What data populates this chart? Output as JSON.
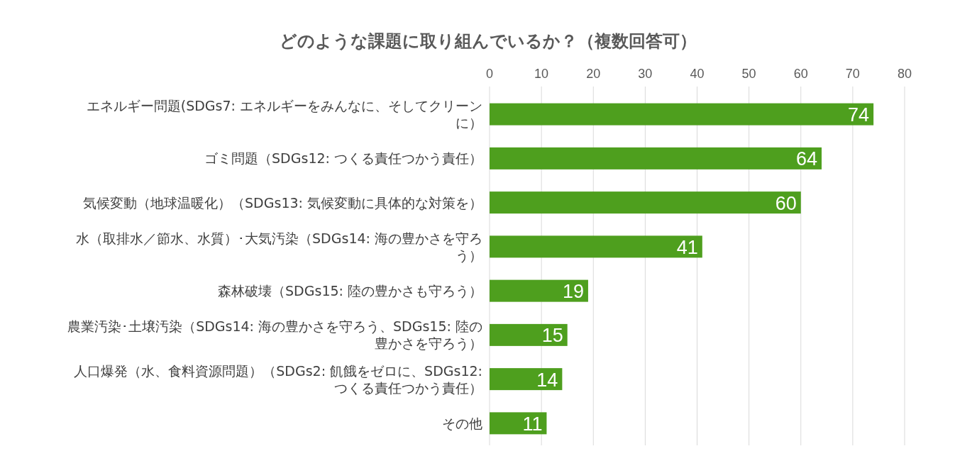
{
  "chart_data": {
    "type": "bar",
    "orientation": "horizontal",
    "title": "どのような課題に取り組んでいるか？（複数回答可）",
    "categories": [
      "エネルギー問題(SDGs7: エネルギーをみんなに、そしてクリーンに）",
      "ゴミ問題（SDGs12: つくる責任つかう責任）",
      "気候変動（地球温暖化）（SDGs13: 気候変動に具体的な対策を）",
      "水（取排水／節水、水質）･大気汚染（SDGs14: 海の豊かさを守ろう）",
      "森林破壊（SDGs15: 陸の豊かさも守ろう）",
      "農業汚染･土壌汚染（SDGs14: 海の豊かさを守ろう、SDGs15: 陸の豊かさを守ろう）",
      "人口爆発（水、食料資源問題）（SDGs2: 飢餓をゼロに、SDGs12: つくる責任つかう責任）",
      "その他"
    ],
    "values": [
      74,
      64,
      60,
      41,
      19,
      15,
      14,
      11
    ],
    "color": "#4e9f1e",
    "xlim": [
      0,
      80
    ],
    "xticks": [
      0,
      10,
      20,
      30,
      40,
      50,
      60,
      70,
      80
    ],
    "grid": "x",
    "data_labels": true
  }
}
